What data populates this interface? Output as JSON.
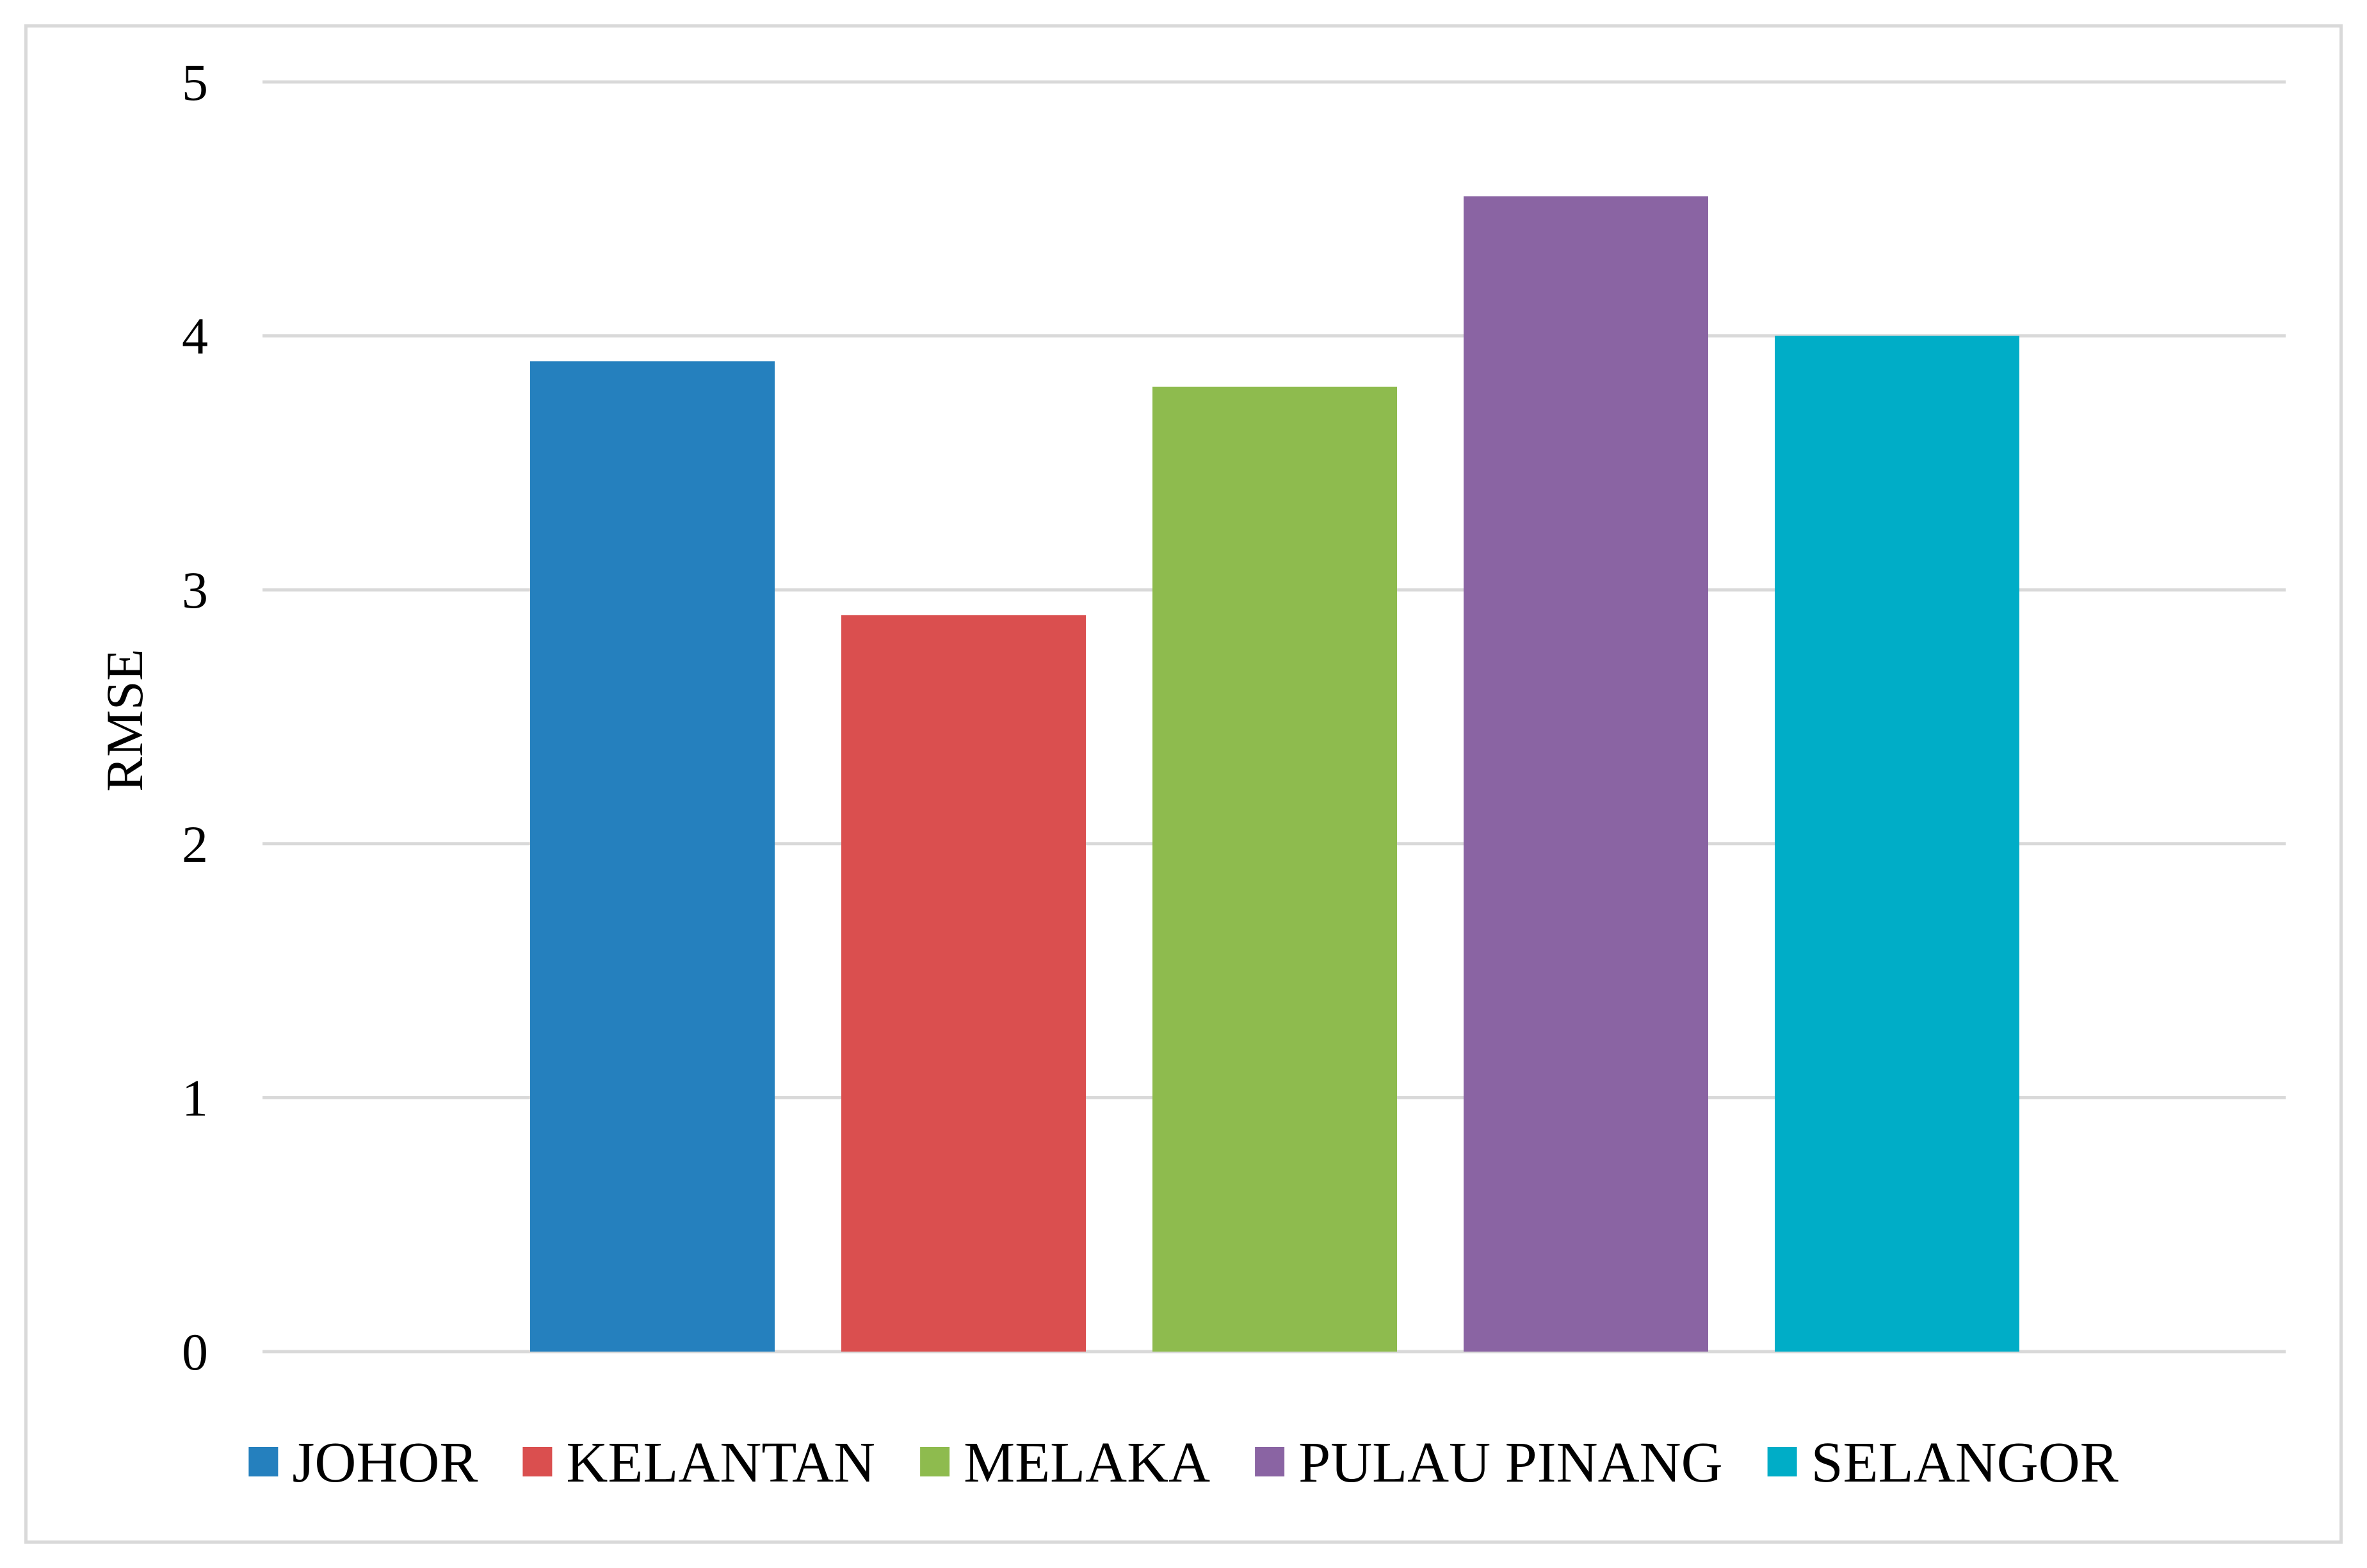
{
  "chart_data": {
    "type": "bar",
    "title": "",
    "xlabel": "",
    "ylabel": "RMSE",
    "ylim": [
      0,
      5
    ],
    "yticks": [
      "0",
      "1",
      "2",
      "3",
      "4",
      "5"
    ],
    "grid": true,
    "legend_position": "bottom",
    "series": [
      {
        "name": "JOHOR",
        "value": 3.9,
        "color": "#2580BE"
      },
      {
        "name": "KELANTAN",
        "value": 2.9,
        "color": "#DA4F4F"
      },
      {
        "name": "MELAKA",
        "value": 3.8,
        "color": "#8EBB4E"
      },
      {
        "name": "PULAU PINANG",
        "value": 4.55,
        "color": "#8A64A3"
      },
      {
        "name": "SELANGOR",
        "value": 4.0,
        "color": "#00ADC7"
      }
    ]
  }
}
